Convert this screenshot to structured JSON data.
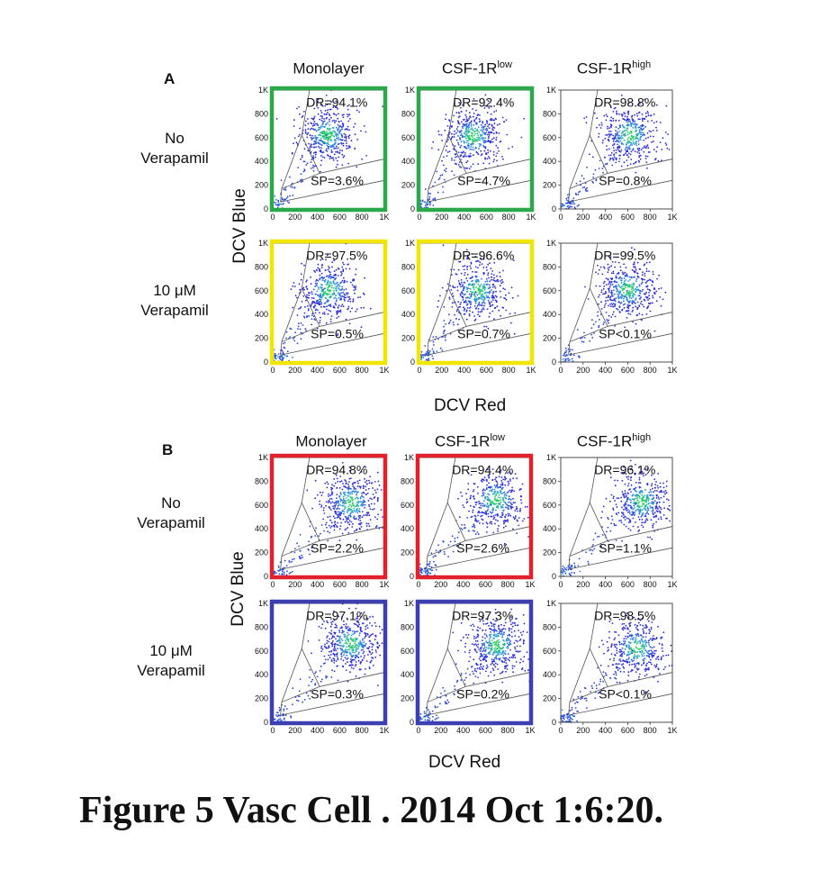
{
  "panels": [
    {
      "letter": "A",
      "columns": [
        {
          "name": "Monolayer",
          "sup": ""
        },
        {
          "name": "CSF-1R",
          "sup": "low"
        },
        {
          "name": "CSF-1R",
          "sup": "high"
        }
      ],
      "rows": [
        {
          "line1": "No",
          "line2": "Verapamil"
        },
        {
          "line1": "10 μM",
          "line2": "Verapamil"
        }
      ],
      "ylabel": "DCV Blue",
      "xlabel": "DCV Red"
    },
    {
      "letter": "B",
      "columns": [
        {
          "name": "Monolayer",
          "sup": ""
        },
        {
          "name": "CSF-1R",
          "sup": "low"
        },
        {
          "name": "CSF-1R",
          "sup": "high"
        }
      ],
      "rows": [
        {
          "line1": "No",
          "line2": "Verapamil"
        },
        {
          "line1": "10 μM",
          "line2": "Verapamil"
        }
      ],
      "ylabel": "DCV Blue",
      "xlabel": "DCV Red"
    }
  ],
  "caption": "Figure 5 Vasc Cell . 2014 Oct 1:6:20.",
  "colors": {
    "green_frame": "#2aa84a",
    "yellow_frame": "#f2e600",
    "red_frame": "#e0222e",
    "blue_frame": "#3c3fb0",
    "density_low": "#3a3adc",
    "density_high": "#1ed15a"
  },
  "chart_data": [
    {
      "type": "scatter",
      "panel": "A",
      "row": "No Verapamil",
      "column": "Monolayer",
      "xlabel": "DCV Red",
      "ylabel": "DCV Blue",
      "xticks": [
        "0",
        "200",
        "400",
        "600",
        "800",
        "1K"
      ],
      "yticks": [
        "0",
        "200",
        "400",
        "600",
        "800",
        "1K"
      ],
      "xlim": [
        0,
        1000
      ],
      "ylim": [
        0,
        1000
      ],
      "frame": "green",
      "gates": {
        "DR": "DR=94.1%",
        "SP": "SP=3.6%"
      },
      "population_center": [
        490,
        620
      ]
    },
    {
      "type": "scatter",
      "panel": "A",
      "row": "No Verapamil",
      "column": "CSF-1R low",
      "xlabel": "DCV Red",
      "ylabel": "DCV Blue",
      "xticks": [
        "0",
        "200",
        "400",
        "600",
        "800",
        "1K"
      ],
      "yticks": [
        "0",
        "200",
        "400",
        "600",
        "800",
        "1K"
      ],
      "xlim": [
        0,
        1000
      ],
      "ylim": [
        0,
        1000
      ],
      "frame": "green",
      "gates": {
        "DR": "DR=92.4%",
        "SP": "SP=4.7%"
      },
      "population_center": [
        480,
        610
      ]
    },
    {
      "type": "scatter",
      "panel": "A",
      "row": "No Verapamil",
      "column": "CSF-1R high",
      "xlabel": "DCV Red",
      "ylabel": "DCV Blue",
      "xticks": [
        "0",
        "200",
        "400",
        "600",
        "800",
        "1K"
      ],
      "yticks": [
        "0",
        "200",
        "400",
        "600",
        "800",
        "1K"
      ],
      "xlim": [
        0,
        1000
      ],
      "ylim": [
        0,
        1000
      ],
      "frame": "none",
      "gates": {
        "DR": "DR=98.8%",
        "SP": "SP=0.8%"
      },
      "population_center": [
        620,
        620
      ]
    },
    {
      "type": "scatter",
      "panel": "A",
      "row": "10 μM Verapamil",
      "column": "Monolayer",
      "xlabel": "DCV Red",
      "ylabel": "DCV Blue",
      "xticks": [
        "0",
        "200",
        "400",
        "600",
        "800",
        "1K"
      ],
      "yticks": [
        "0",
        "200",
        "400",
        "600",
        "800",
        "1K"
      ],
      "xlim": [
        0,
        1000
      ],
      "ylim": [
        0,
        1000
      ],
      "frame": "yellow",
      "gates": {
        "DR": "DR=97.5%",
        "SP": "SP=0.5%"
      },
      "population_center": [
        500,
        600
      ]
    },
    {
      "type": "scatter",
      "panel": "A",
      "row": "10 μM Verapamil",
      "column": "CSF-1R low",
      "xlabel": "DCV Red",
      "ylabel": "DCV Blue",
      "xticks": [
        "0",
        "200",
        "400",
        "600",
        "800",
        "1K"
      ],
      "yticks": [
        "0",
        "200",
        "400",
        "600",
        "800",
        "1K"
      ],
      "xlim": [
        0,
        1000
      ],
      "ylim": [
        0,
        1000
      ],
      "frame": "yellow",
      "gates": {
        "DR": "DR=96.6%",
        "SP": "SP=0.7%"
      },
      "population_center": [
        520,
        600
      ]
    },
    {
      "type": "scatter",
      "panel": "A",
      "row": "10 μM Verapamil",
      "column": "CSF-1R high",
      "xlabel": "DCV Red",
      "ylabel": "DCV Blue",
      "xticks": [
        "0",
        "200",
        "400",
        "600",
        "800",
        "1K"
      ],
      "yticks": [
        "0",
        "200",
        "400",
        "600",
        "800",
        "1K"
      ],
      "xlim": [
        0,
        1000
      ],
      "ylim": [
        0,
        1000
      ],
      "frame": "none",
      "gates": {
        "DR": "DR=99.5%",
        "SP": "SP<0.1%"
      },
      "population_center": [
        600,
        610
      ]
    },
    {
      "type": "scatter",
      "panel": "B",
      "row": "No Verapamil",
      "column": "Monolayer",
      "xlabel": "DCV Red",
      "ylabel": "DCV Blue",
      "xticks": [
        "0",
        "200",
        "400",
        "600",
        "800",
        "1K"
      ],
      "yticks": [
        "0",
        "200",
        "400",
        "600",
        "800",
        "1K"
      ],
      "xlim": [
        0,
        1000
      ],
      "ylim": [
        0,
        1000
      ],
      "frame": "red",
      "gates": {
        "DR": "DR=94.8%",
        "SP": "SP=2.2%"
      },
      "population_center": [
        700,
        620
      ]
    },
    {
      "type": "scatter",
      "panel": "B",
      "row": "No Verapamil",
      "column": "CSF-1R low",
      "xlabel": "DCV Red",
      "ylabel": "DCV Blue",
      "xticks": [
        "0",
        "200",
        "400",
        "600",
        "800",
        "1K"
      ],
      "yticks": [
        "0",
        "200",
        "400",
        "600",
        "800",
        "1K"
      ],
      "xlim": [
        0,
        1000
      ],
      "ylim": [
        0,
        1000
      ],
      "frame": "red",
      "gates": {
        "DR": "DR=94.4%",
        "SP": "SP=2.6%"
      },
      "population_center": [
        690,
        640
      ]
    },
    {
      "type": "scatter",
      "panel": "B",
      "row": "No Verapamil",
      "column": "CSF-1R high",
      "xlabel": "DCV Red",
      "ylabel": "DCV Blue",
      "xticks": [
        "0",
        "200",
        "400",
        "600",
        "800",
        "1K"
      ],
      "yticks": [
        "0",
        "200",
        "400",
        "600",
        "800",
        "1K"
      ],
      "xlim": [
        0,
        1000
      ],
      "ylim": [
        0,
        1000
      ],
      "frame": "none",
      "gates": {
        "DR": "DR=96.1%",
        "SP": "SP=1.1%"
      },
      "population_center": [
        720,
        630
      ]
    },
    {
      "type": "scatter",
      "panel": "B",
      "row": "10 μM Verapamil",
      "column": "Monolayer",
      "xlabel": "DCV Red",
      "ylabel": "DCV Blue",
      "xticks": [
        "0",
        "200",
        "400",
        "600",
        "800",
        "1K"
      ],
      "yticks": [
        "0",
        "200",
        "400",
        "600",
        "800",
        "1K"
      ],
      "xlim": [
        0,
        1000
      ],
      "ylim": [
        0,
        1000
      ],
      "frame": "blue",
      "gates": {
        "DR": "DR=97.1%",
        "SP": "SP=0.3%"
      },
      "population_center": [
        700,
        660
      ]
    },
    {
      "type": "scatter",
      "panel": "B",
      "row": "10 μM Verapamil",
      "column": "CSF-1R low",
      "xlabel": "DCV Red",
      "ylabel": "DCV Blue",
      "xticks": [
        "0",
        "200",
        "400",
        "600",
        "800",
        "1K"
      ],
      "yticks": [
        "0",
        "200",
        "400",
        "600",
        "800",
        "1K"
      ],
      "xlim": [
        0,
        1000
      ],
      "ylim": [
        0,
        1000
      ],
      "frame": "blue",
      "gates": {
        "DR": "DR=97.3%",
        "SP": "SP=0.2%"
      },
      "population_center": [
        700,
        650
      ]
    },
    {
      "type": "scatter",
      "panel": "B",
      "row": "10 μM Verapamil",
      "column": "CSF-1R high",
      "xlabel": "DCV Red",
      "ylabel": "DCV Blue",
      "xticks": [
        "0",
        "200",
        "400",
        "600",
        "800",
        "1K"
      ],
      "yticks": [
        "0",
        "200",
        "400",
        "600",
        "800",
        "1K"
      ],
      "xlim": [
        0,
        1000
      ],
      "ylim": [
        0,
        1000
      ],
      "frame": "none",
      "gates": {
        "DR": "DR=98.5%",
        "SP": "SP<0.1%"
      },
      "population_center": [
        680,
        620
      ]
    }
  ]
}
